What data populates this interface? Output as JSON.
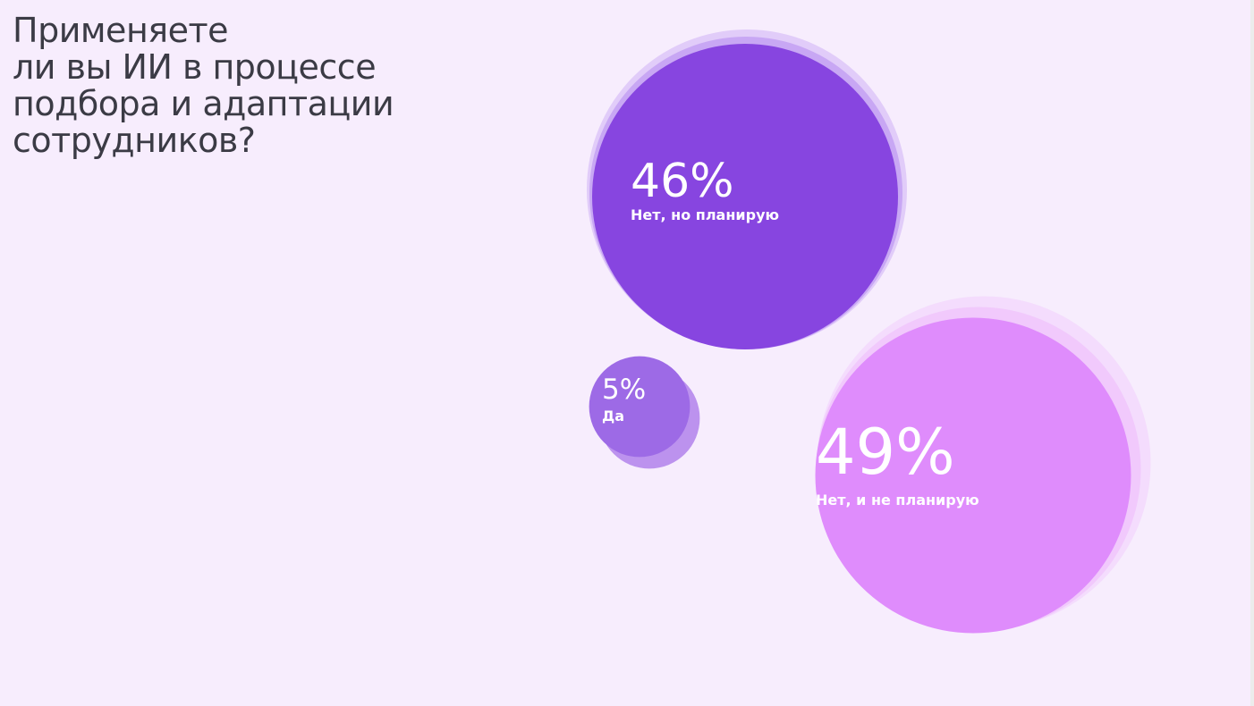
{
  "slide": {
    "title": "Применяете\nли вы ИИ в процессе\nподбора и адаптации\nсотрудников?"
  },
  "colors": {
    "background": "#f7edfd",
    "title": "#3b3b45",
    "text_on_bubble": "#ffffff"
  },
  "chart_data": {
    "type": "bubble",
    "title": "Применяете ли вы ИИ в процессе подбора и адаптации сотрудников?",
    "unit": "%",
    "legend": "none",
    "grid": false,
    "series": [
      {
        "name": "Нет, но планирую",
        "value": 46,
        "value_label": "46%",
        "color": "#8745e0",
        "halo_color": "#b88ef0"
      },
      {
        "name": "Да",
        "value": 5,
        "value_label": "5%",
        "color": "#9d6ae6",
        "halo_color": "#b587ec"
      },
      {
        "name": "Нет, и не планирую",
        "value": 49,
        "value_label": "49%",
        "color": "#df8cfc",
        "halo_color": "#eebcfb"
      }
    ]
  }
}
